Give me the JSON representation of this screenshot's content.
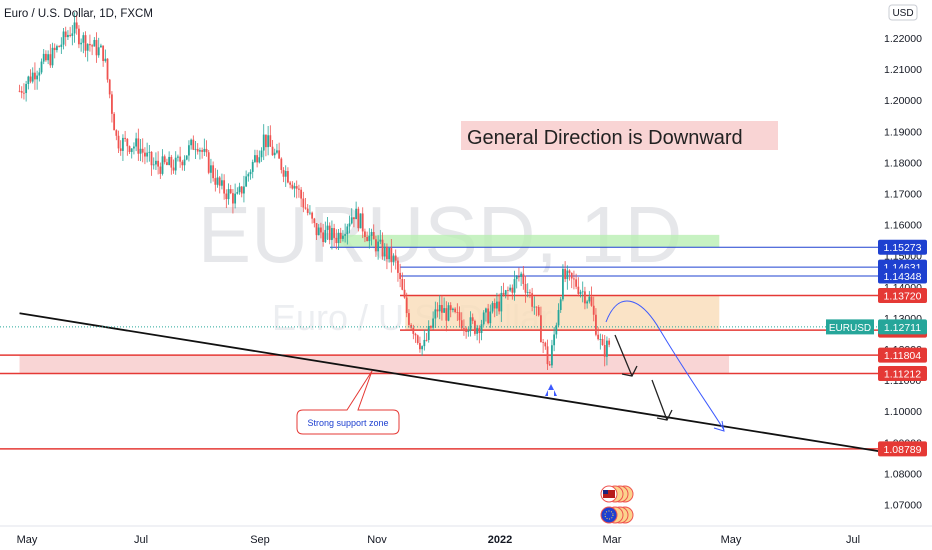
{
  "header": {
    "title": "Euro / U.S. Dollar, 1D, FXCM",
    "currency_button": "USD"
  },
  "watermark": {
    "symbol": "EURUSD, 1D",
    "name": "Euro / U.S. Dollar"
  },
  "colors": {
    "up": "#26a69a",
    "down": "#ef5350",
    "red_line": "#e53935",
    "blue_line": "#1e40d0",
    "support_zone": "#f8caca",
    "range_box": "#f9dcb8",
    "green_zone": "#b9efb3",
    "banner_bg": "#f9d4d4",
    "price_tag": "#26a69a",
    "arrow": "#3d5afe"
  },
  "chart_data": {
    "type": "candlestick",
    "title": "Euro / U.S. Dollar, 1D, FXCM",
    "x_ticks": [
      "May",
      "Jul",
      "Sep",
      "Nov",
      "2022",
      "Mar",
      "May",
      "Jul"
    ],
    "y_ticks": [
      "1.22000",
      "1.21000",
      "1.20000",
      "1.19000",
      "1.18000",
      "1.17000",
      "1.16000",
      "1.15000",
      "1.14000",
      "1.13000",
      "1.12000",
      "1.11000",
      "1.10000",
      "1.09000",
      "1.08000",
      "1.07000"
    ],
    "ylim": [
      1.0645,
      1.2268
    ],
    "current_price": {
      "label": "EURUSD",
      "value": "1.12711"
    },
    "price_levels": [
      {
        "value": "1.15273",
        "color": "blue"
      },
      {
        "value": "1.14631",
        "color": "blue"
      },
      {
        "value": "1.14348",
        "color": "blue"
      },
      {
        "value": "1.13720",
        "color": "red"
      },
      {
        "value": "1.12607",
        "color": "red"
      },
      {
        "value": "1.11804",
        "color": "red"
      },
      {
        "value": "1.11212",
        "color": "red"
      },
      {
        "value": "1.08789",
        "color": "red"
      }
    ],
    "price_path": [
      {
        "date": "2021-04-27",
        "close": 1.203
      },
      {
        "date": "2021-05-06",
        "close": 1.21
      },
      {
        "date": "2021-05-14",
        "close": 1.214
      },
      {
        "date": "2021-05-25",
        "close": 1.223
      },
      {
        "date": "2021-06-01",
        "close": 1.219
      },
      {
        "date": "2021-06-11",
        "close": 1.215
      },
      {
        "date": "2021-06-18",
        "close": 1.187
      },
      {
        "date": "2021-06-30",
        "close": 1.185
      },
      {
        "date": "2021-07-07",
        "close": 1.179
      },
      {
        "date": "2021-07-19",
        "close": 1.179
      },
      {
        "date": "2021-07-30",
        "close": 1.187
      },
      {
        "date": "2021-08-11",
        "close": 1.172
      },
      {
        "date": "2021-08-20",
        "close": 1.168
      },
      {
        "date": "2021-09-03",
        "close": 1.188
      },
      {
        "date": "2021-09-10",
        "close": 1.181
      },
      {
        "date": "2021-09-20",
        "close": 1.172
      },
      {
        "date": "2021-09-30",
        "close": 1.158
      },
      {
        "date": "2021-10-11",
        "close": 1.156
      },
      {
        "date": "2021-10-20",
        "close": 1.164
      },
      {
        "date": "2021-10-29",
        "close": 1.155
      },
      {
        "date": "2021-11-10",
        "close": 1.148
      },
      {
        "date": "2021-11-16",
        "close": 1.131
      },
      {
        "date": "2021-11-24",
        "close": 1.12
      },
      {
        "date": "2021-12-01",
        "close": 1.133
      },
      {
        "date": "2021-12-10",
        "close": 1.13
      },
      {
        "date": "2021-12-20",
        "close": 1.127
      },
      {
        "date": "2021-12-31",
        "close": 1.134
      },
      {
        "date": "2022-01-12",
        "close": 1.144
      },
      {
        "date": "2022-01-19",
        "close": 1.134
      },
      {
        "date": "2022-01-27",
        "close": 1.114
      },
      {
        "date": "2022-02-03",
        "close": 1.143
      },
      {
        "date": "2022-02-10",
        "close": 1.141
      },
      {
        "date": "2022-02-17",
        "close": 1.136
      },
      {
        "date": "2022-02-24",
        "close": 1.119
      },
      {
        "date": "2022-02-28",
        "close": 1.122
      }
    ],
    "zones": [
      {
        "name": "green",
        "from": 1.1527,
        "to": 1.1567,
        "start": "2021-10-12",
        "end": "2022-04-25"
      },
      {
        "name": "range",
        "from": 1.1261,
        "to": 1.1372,
        "start": "2021-11-15",
        "end": "2022-04-25"
      },
      {
        "name": "support",
        "from": 1.1121,
        "to": 1.118,
        "start": "2021-04-27",
        "end": "2022-04-30"
      }
    ],
    "trendline": {
      "start": {
        "date": "2021-04-27",
        "value": 1.1315
      },
      "end": {
        "date": "2022-07-23",
        "value": 1.0862
      }
    }
  },
  "annotations": {
    "banner": "General Direction is Downward",
    "callout": "Strong support zone"
  }
}
